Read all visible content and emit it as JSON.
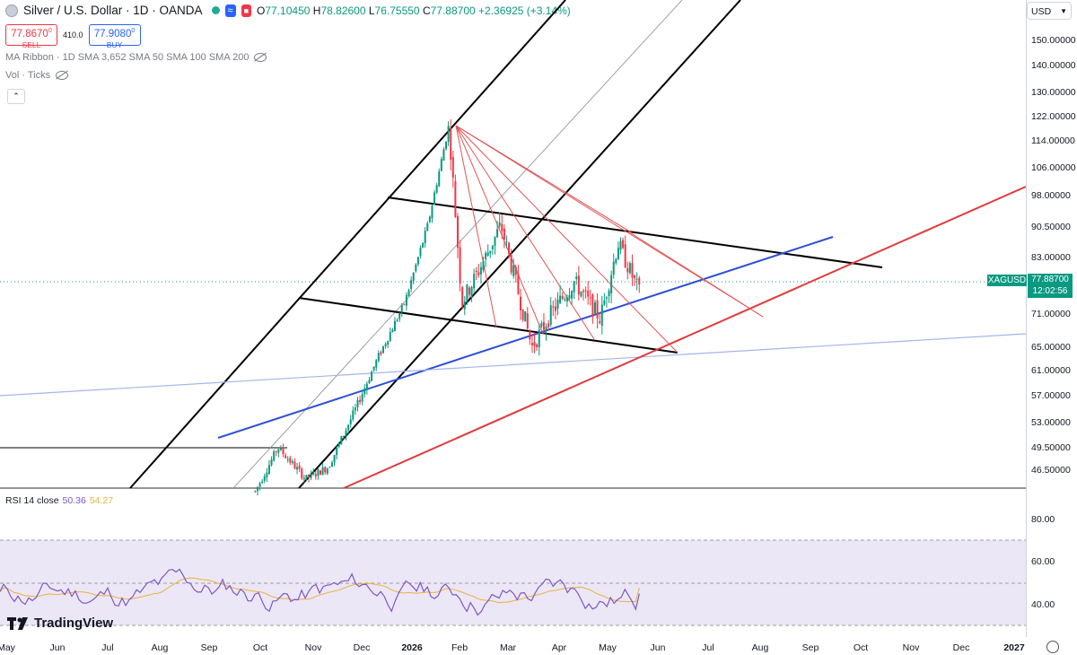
{
  "header": {
    "title": "Silver / U.S. Dollar · 1D · OANDA",
    "open_label": "O",
    "open": "77.10450",
    "high_label": "H",
    "high": "78.82600",
    "low_label": "L",
    "low": "76.75550",
    "close_label": "C",
    "close": "77.88700",
    "change": "+2.36925 (+3.14%)",
    "sell_price": "77.8670",
    "sell_sup": "0",
    "sell_label": "SELL",
    "buy_price": "77.9080",
    "buy_sup": "0",
    "buy_label": "BUY",
    "spread": "410.0",
    "indicator_1": "MA Ribbon · 1D SMA 3,652 SMA 50 SMA 100 SMA 200",
    "indicator_2": "Vol · Ticks",
    "currency": "USD"
  },
  "price_axis": {
    "ticks": [
      "150.00000",
      "140.00000",
      "130.00000",
      "122.00000",
      "114.00000",
      "106.00000",
      "98.00000",
      "90.50000",
      "83.00000",
      "71.00000",
      "65.00000",
      "61.00000",
      "57.00000",
      "53.00000",
      "49.50000",
      "46.50000"
    ]
  },
  "current_price": {
    "symbol": "XAGUSD",
    "price": "77.88700",
    "countdown": "12:02:56"
  },
  "rsi": {
    "label": "RSI 14 close",
    "value": "50.36",
    "ma_value": "54.27",
    "ticks": [
      "80.00",
      "60.00",
      "40.00"
    ]
  },
  "time_axis": {
    "ticks": [
      "May",
      "Jun",
      "Jul",
      "Aug",
      "Sep",
      "Oct",
      "Nov",
      "Dec",
      "2026",
      "Feb",
      "Mar",
      "Apr",
      "May",
      "Jun",
      "Jul",
      "Aug",
      "Sep",
      "Oct",
      "Nov",
      "Dec",
      "2027"
    ]
  },
  "branding": {
    "logo_text": "TradingView"
  },
  "colors": {
    "up": "#089981",
    "down": "#f23645",
    "rsi": "#7e57c2",
    "rsi_ma": "#e8b13f",
    "trend_blue": "#2d4fd6",
    "trend_red": "#e03a3a"
  },
  "chart_data": {
    "type": "candlestick",
    "symbol": "XAGUSD",
    "timeframe": "1D",
    "scale": "log",
    "x": [
      "2025-10-01",
      "2025-10-15",
      "2025-11-01",
      "2025-11-15",
      "2025-12-01",
      "2025-12-15",
      "2026-01-01",
      "2026-01-15",
      "2026-01-28",
      "2026-02-05",
      "2026-02-15",
      "2026-03-01",
      "2026-03-10",
      "2026-03-20",
      "2026-04-01",
      "2026-04-15",
      "2026-05-01",
      "2026-05-12",
      "2026-05-25"
    ],
    "close": [
      47.5,
      53.0,
      49.0,
      50.5,
      58.0,
      66.0,
      76.0,
      92.0,
      118.0,
      76.0,
      82.0,
      92.0,
      80.0,
      68.0,
      74.0,
      80.0,
      73.0,
      88.0,
      77.9
    ],
    "last": {
      "open": 77.1045,
      "high": 78.826,
      "low": 76.7555,
      "close": 77.887,
      "change": 2.36925,
      "change_pct": 3.14
    },
    "rsi": {
      "period": 14,
      "value": 50.36,
      "ma": 54.27,
      "levels": [
        70,
        50,
        30
      ],
      "ylim": [
        30,
        85
      ]
    }
  }
}
